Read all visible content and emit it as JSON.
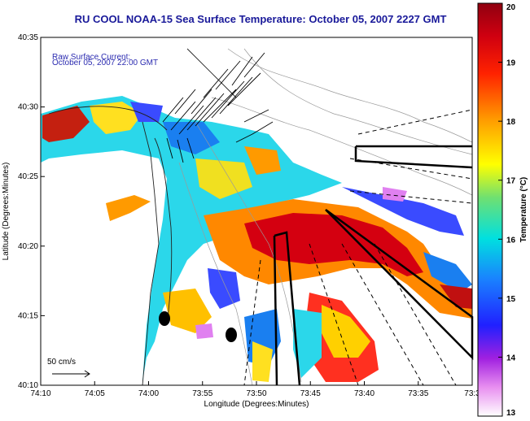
{
  "title": "RU COOL  NOAA-15  Sea Surface Temperature:  October 05, 2007 2227 GMT",
  "annotation": {
    "line1": "Raw Surface Current:",
    "line2": "October 05, 2007 22:00 GMT",
    "color": "#2b2bb0"
  },
  "scale_arrow_label": "50 cm/s",
  "axes": {
    "xlabel": "Longitude (Degrees:Minutes)",
    "ylabel": "Latitude (Degrees:Minutes)",
    "x_ticks": [
      "74:10",
      "74:05",
      "74:00",
      "73:55",
      "73:50",
      "73:45",
      "73:40",
      "73:35",
      "73:3"
    ],
    "y_ticks": [
      "40:35",
      "40:30",
      "40:25",
      "40:20",
      "40:15",
      "40:10"
    ]
  },
  "colorbar": {
    "label": "Temperature (°C)",
    "min": 13,
    "max": 20,
    "ticks": [
      "20",
      "19",
      "18",
      "17",
      "16",
      "15",
      "14",
      "13"
    ]
  }
}
